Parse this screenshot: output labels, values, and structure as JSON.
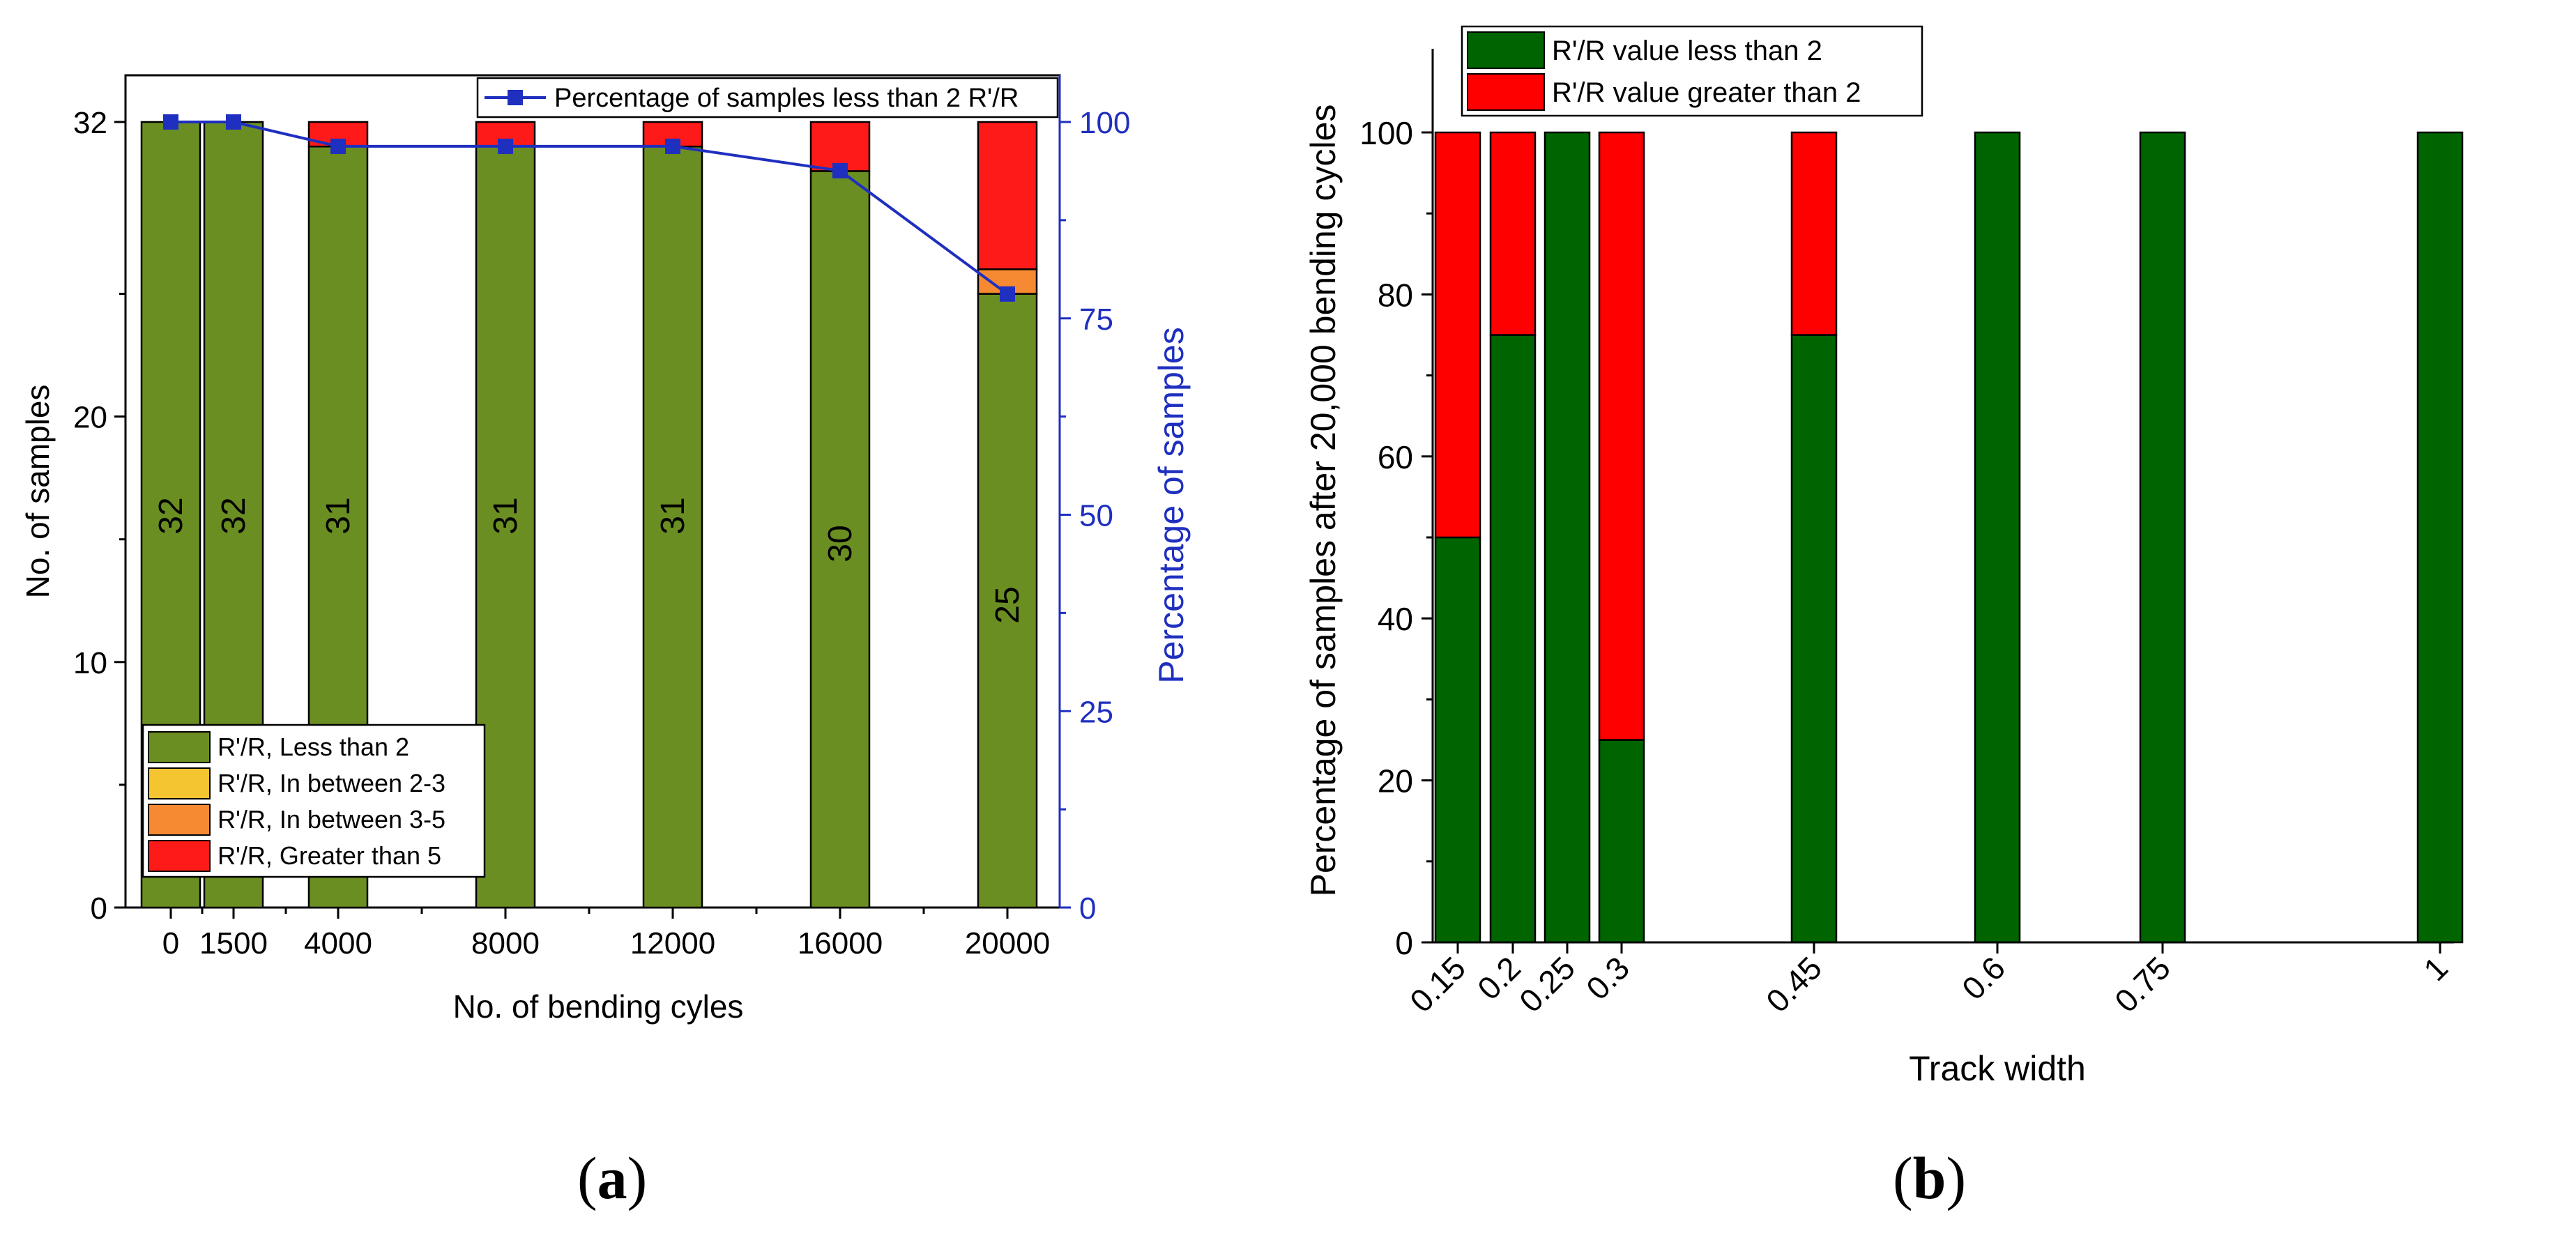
{
  "chart_data": [
    {
      "panel": "(a)",
      "type": "bar",
      "xlabel": "No. of bending cyles",
      "ylabel": "No. of samples",
      "y2label": "Percentage of samples",
      "categories": [
        "0",
        "1500",
        "4000",
        "8000",
        "12000",
        "16000",
        "20000"
      ],
      "ylim": [
        0,
        32
      ],
      "yticks": [
        0,
        10,
        20,
        32
      ],
      "y2lim": [
        0,
        100
      ],
      "y2ticks": [
        0,
        25,
        50,
        75,
        100
      ],
      "series": [
        {
          "name": "R'/R, Less than 2",
          "color": "#6b8e23",
          "values": [
            32,
            32,
            31,
            31,
            31,
            30,
            25
          ]
        },
        {
          "name": "R'/R, In between 2-3",
          "color": "#f5c431",
          "values": [
            0,
            0,
            0,
            0,
            0,
            0,
            0
          ]
        },
        {
          "name": "R'/R, In between 3-5",
          "color": "#f58a32",
          "values": [
            0,
            0,
            0,
            0,
            0,
            0,
            1
          ]
        },
        {
          "name": "R'/R, Greater than 5",
          "color": "#ff1a1a",
          "values": [
            0,
            0,
            1,
            1,
            1,
            2,
            6
          ]
        }
      ],
      "bar_labels": [
        "32",
        "32",
        "31",
        "31",
        "31",
        "30",
        "25"
      ],
      "line": {
        "name": "Percentage of samples less than 2 R'/R",
        "color": "#1f2fbf",
        "values": [
          100,
          100,
          96.9,
          96.9,
          96.9,
          93.8,
          78.1
        ]
      },
      "legend": "bottom-left",
      "line_legend": "top-right"
    },
    {
      "panel": "(b)",
      "type": "bar",
      "xlabel": "Track width",
      "ylabel": "Percentage of samples after 20,000 bending cycles",
      "categories": [
        "0.15",
        "0.2",
        "0.25",
        "0.3",
        "0.45",
        "0.6",
        "0.75",
        "1"
      ],
      "ylim": [
        0,
        110
      ],
      "yticks": [
        0,
        20,
        40,
        60,
        80,
        100
      ],
      "series": [
        {
          "name": "R'/R value less than 2",
          "color": "#006400",
          "values": [
            50,
            75,
            100,
            25,
            75,
            100,
            100,
            100
          ]
        },
        {
          "name": "R'/R value greater than 2",
          "color": "#ff0000",
          "values": [
            50,
            25,
            0,
            75,
            25,
            0,
            0,
            0
          ]
        }
      ],
      "legend": "top-left"
    }
  ]
}
